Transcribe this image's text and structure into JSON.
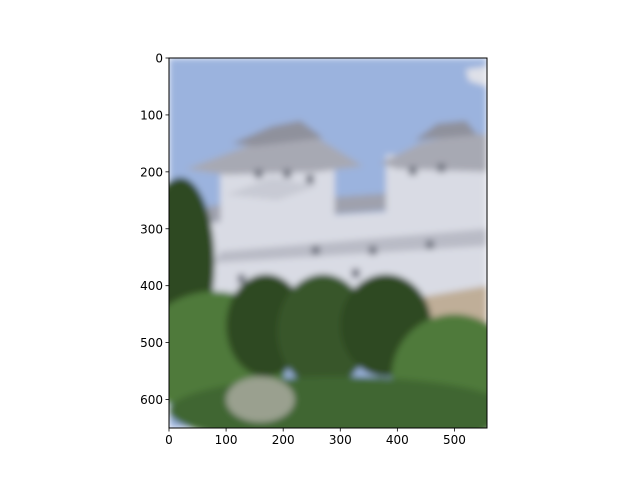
{
  "chart_data": {
    "type": "image",
    "xlim": [
      0,
      557
    ],
    "ylim": [
      650,
      0
    ],
    "x_ticks": [
      0,
      100,
      200,
      300,
      400,
      500
    ],
    "y_ticks": [
      0,
      100,
      200,
      300,
      400,
      500,
      600
    ],
    "title": "",
    "xlabel": "",
    "ylabel": "",
    "grid": false,
    "image_subject": "blurred photograph of a white Japanese castle (Himeji-style) with tiered roofs above green trees against a blue sky"
  },
  "colors": {
    "sky": "#9bb3de",
    "castle_wall": "#d9dbe4",
    "roof": "#a7a9b3",
    "trees_dark": "#2e4a24",
    "trees_mid": "#4f7a3a",
    "stone": "#bfae98"
  }
}
